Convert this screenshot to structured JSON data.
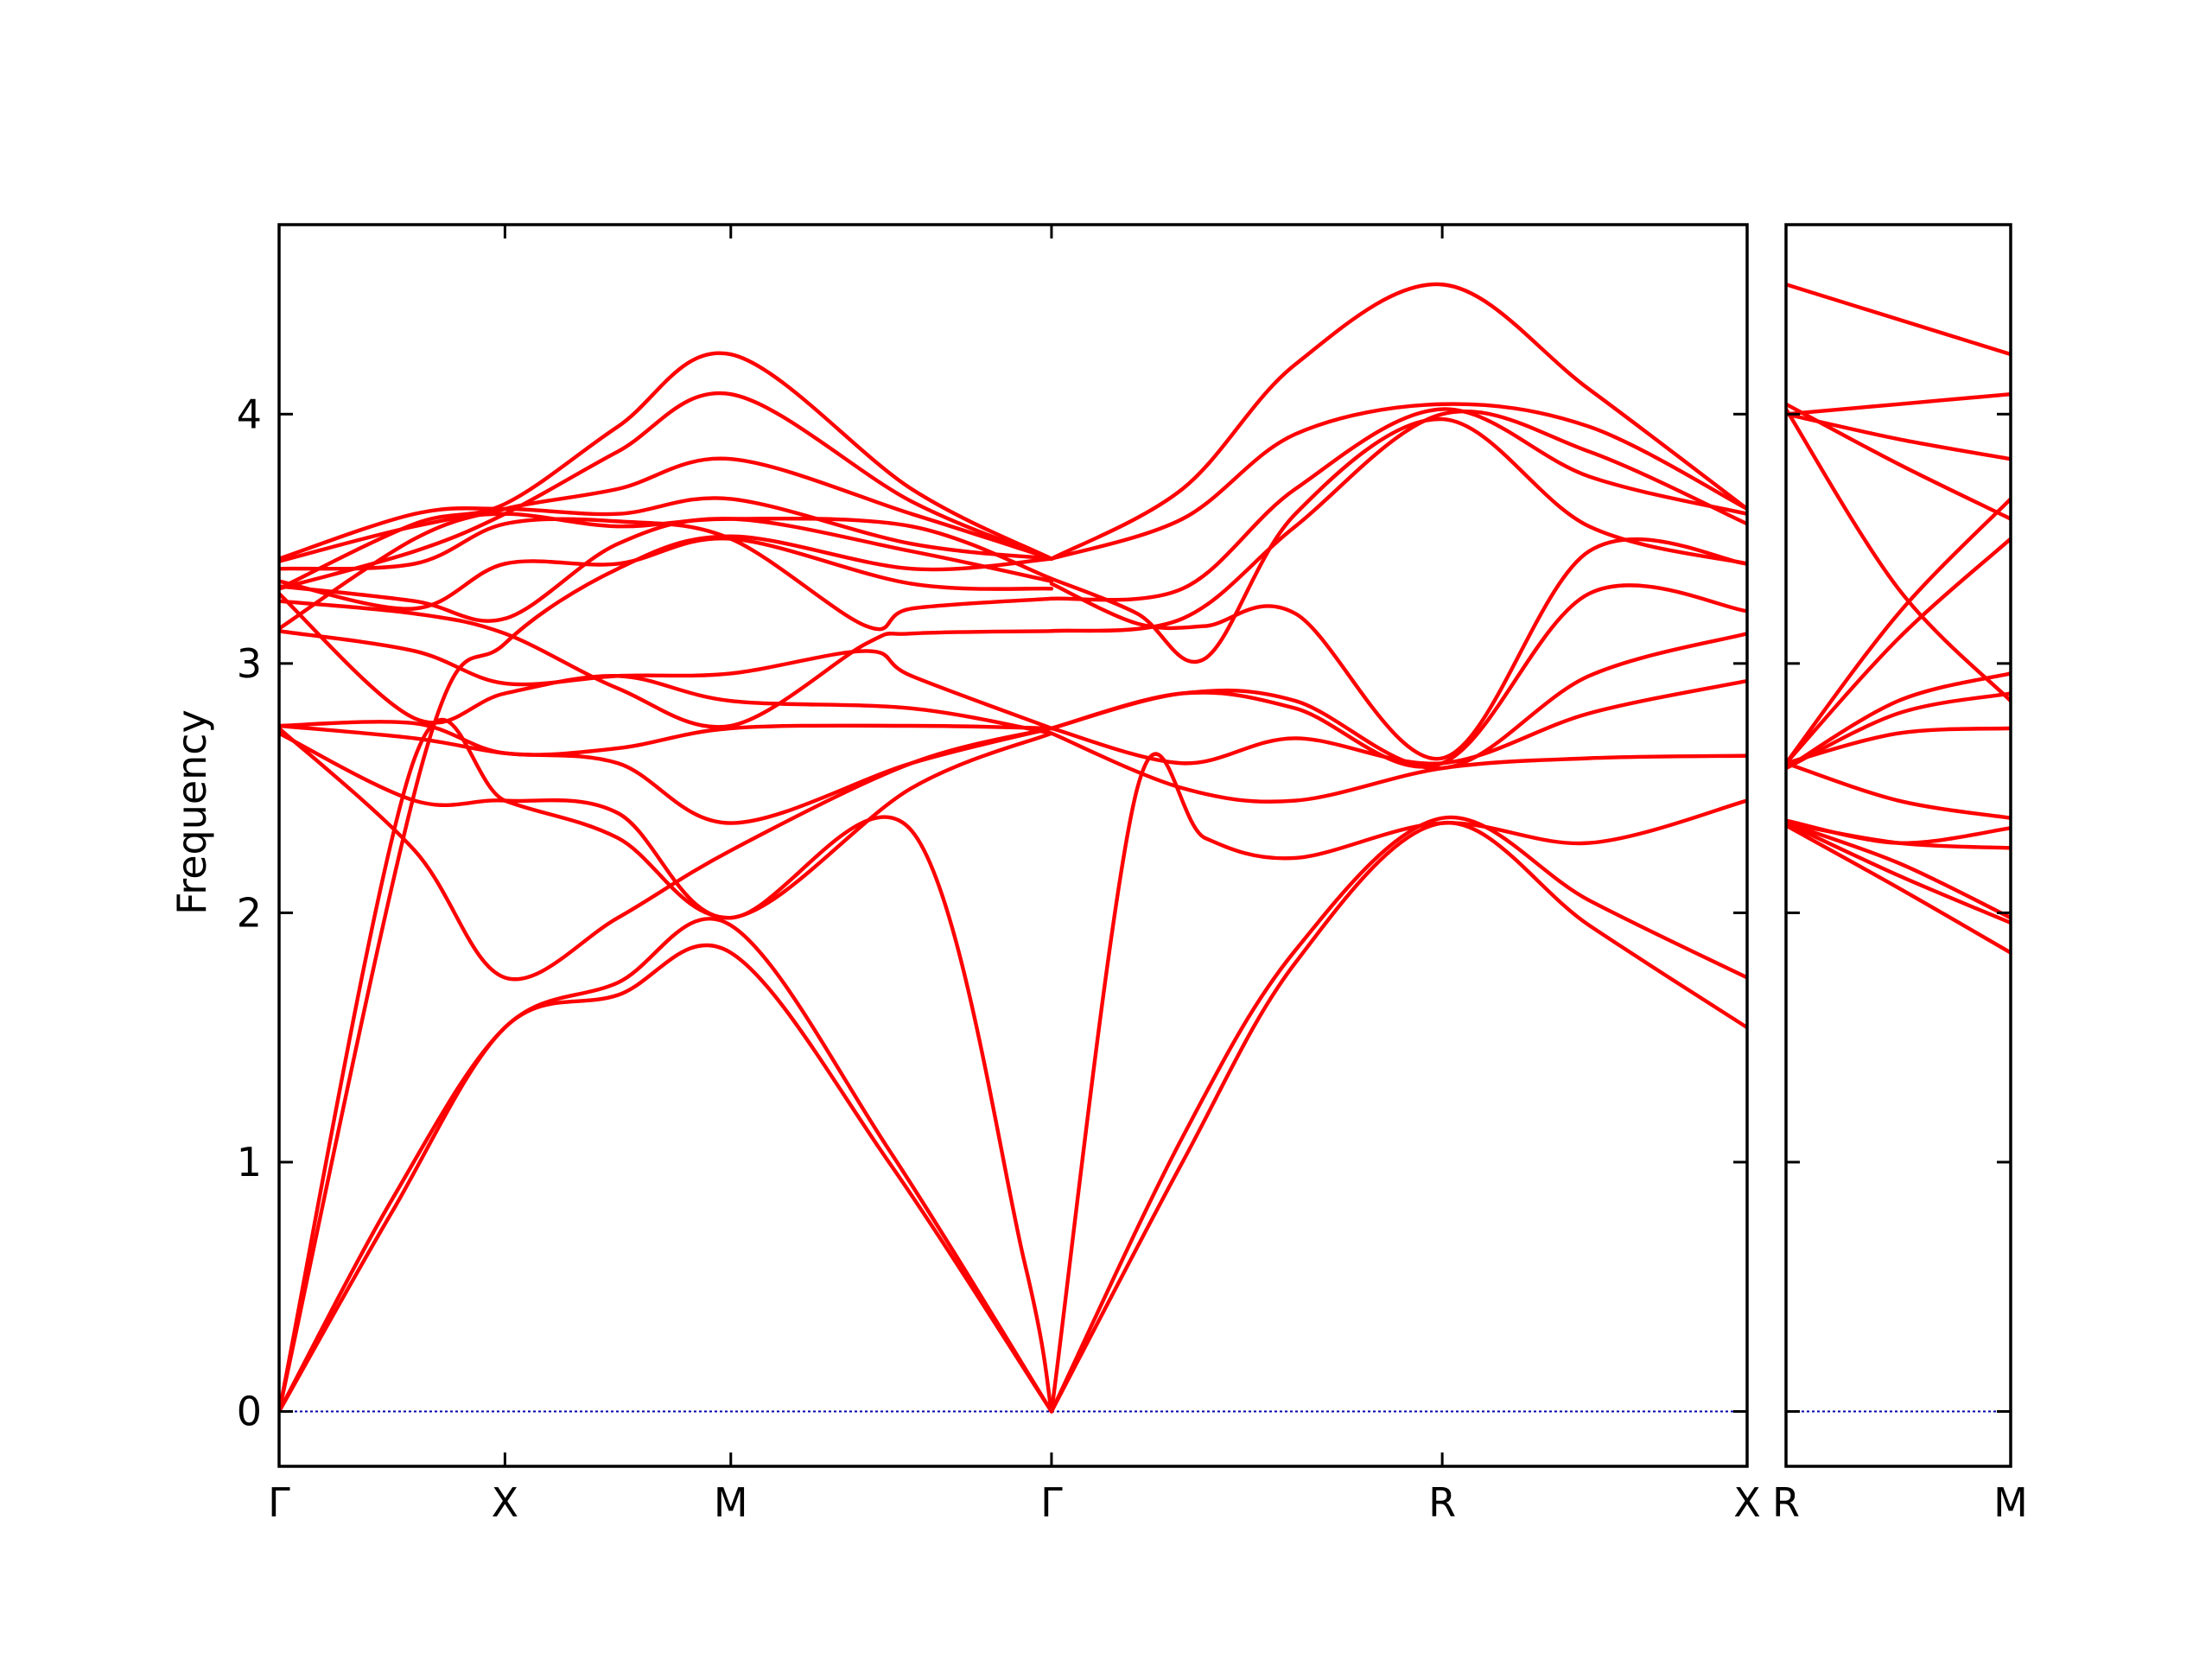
{
  "chart_data": {
    "type": "line",
    "title": "",
    "ylabel": "Frequency",
    "ylim": [
      -0.22,
      4.76
    ],
    "yticks": [
      0,
      1,
      2,
      3,
      4
    ],
    "grid": false,
    "legend": "none",
    "line_color": "#ff0000",
    "zero_line_color": "#0000aa",
    "panels": [
      {
        "xlabels": [
          "Γ",
          "X",
          "M",
          "Γ",
          "R",
          "X"
        ],
        "xlim": [
          0,
          6.5
        ],
        "xticks": [
          0,
          1,
          2,
          3.42,
          5.15,
          6.5
        ],
        "series": [
          {
            "x": [
              0,
              0.5,
              1,
              1.5,
              2,
              2.7,
              3.42
            ],
            "y": [
              0,
              0.8,
              1.54,
              1.67,
              1.84,
              1.0,
              0
            ]
          },
          {
            "x": [
              0,
              0.5,
              1,
              1.5,
              2,
              2.7,
              3.42
            ],
            "y": [
              0,
              0.85,
              1.54,
              1.72,
              1.95,
              1.05,
              0
            ]
          },
          {
            "x": [
              0,
              0.65,
              1,
              1.5,
              2,
              2.8,
              3.42
            ],
            "y": [
              0,
              2.65,
              3.08,
              3.38,
              3.51,
              3.38,
              3.42
            ]
          },
          {
            "x": [
              0,
              0.6,
              1,
              1.5,
              2,
              2.8,
              3.3,
              3.42
            ],
            "y": [
              0,
              2.62,
              2.45,
              2.3,
              1.98,
              2.33,
              0.6,
              0
            ]
          },
          {
            "x": [
              0,
              0.6,
              1,
              1.5,
              2,
              2.8,
              3.42
            ],
            "y": [
              2.74,
              2.25,
              1.74,
              1.98,
              2.25,
              2.6,
              2.74
            ]
          },
          {
            "x": [
              0,
              0.6,
              1,
              1.5,
              2,
              2.8,
              3.42
            ],
            "y": [
              2.72,
              2.45,
              2.45,
              2.4,
              1.98,
              2.5,
              2.72
            ]
          },
          {
            "x": [
              0,
              0.6,
              1,
              1.5,
              2,
              2.8,
              3.42
            ],
            "y": [
              2.75,
              2.7,
              2.64,
              2.6,
              2.36,
              2.6,
              2.74
            ]
          },
          {
            "x": [
              0,
              0.6,
              1,
              1.5,
              2,
              2.8,
              3.42
            ],
            "y": [
              2.75,
              2.76,
              2.64,
              2.66,
              2.74,
              2.75,
              2.74
            ]
          },
          {
            "x": [
              0,
              0.6,
              1,
              1.5,
              2,
              2.6,
              2.8,
              3.42
            ],
            "y": [
              3.13,
              3.05,
              2.92,
              2.95,
              2.96,
              3.05,
              2.95,
              2.74
            ]
          },
          {
            "x": [
              0,
              0.6,
              1,
              1.5,
              2,
              2.8,
              3.42
            ],
            "y": [
              3.28,
              2.78,
              2.88,
              2.95,
              2.85,
              2.82,
              2.72
            ]
          },
          {
            "x": [
              0,
              0.6,
              1,
              1.5,
              2,
              2.6,
              2.8,
              3.42
            ],
            "y": [
              3.25,
              3.2,
              3.12,
              2.9,
              2.75,
              3.08,
              3.12,
              3.13
            ]
          },
          {
            "x": [
              0,
              0.6,
              1,
              1.5,
              2,
              2.8,
              3.42
            ],
            "y": [
              3.31,
              3.25,
              3.18,
              3.48,
              3.58,
              3.45,
              3.33
            ]
          },
          {
            "x": [
              0,
              0.6,
              1,
              1.5,
              2,
              2.8,
              3.42
            ],
            "y": [
              3.33,
              3.22,
              3.4,
              3.4,
              3.5,
              3.32,
              3.3
            ]
          },
          {
            "x": [
              0,
              0.6,
              1,
              1.5,
              2,
              2.6,
              2.8,
              3.42
            ],
            "y": [
              3.38,
              3.4,
              3.56,
              3.57,
              3.5,
              3.15,
              3.22,
              3.26
            ]
          },
          {
            "x": [
              0,
              0.6,
              1,
              1.5,
              2,
              2.8,
              3.42
            ],
            "y": [
              3.41,
              3.55,
              3.6,
              3.55,
              3.58,
              3.55,
              3.34
            ]
          },
          {
            "x": [
              0,
              0.6,
              1,
              1.5,
              2,
              2.8,
              3.42
            ],
            "y": [
              3.42,
              3.6,
              3.62,
              3.6,
              3.66,
              3.48,
              3.42
            ]
          },
          {
            "x": [
              0,
              0.6,
              1,
              1.5,
              2,
              2.8,
              3.42
            ],
            "y": [
              3.14,
              3.5,
              3.62,
              3.7,
              3.82,
              3.6,
              3.42
            ]
          },
          {
            "x": [
              0,
              0.6,
              1,
              1.5,
              2,
              2.8,
              3.42
            ],
            "y": [
              3.3,
              3.45,
              3.6,
              3.85,
              4.08,
              3.65,
              3.42
            ]
          },
          {
            "x": [
              0,
              0.6,
              1,
              1.5,
              2,
              2.8,
              3.42
            ],
            "y": [
              3.3,
              3.56,
              3.64,
              3.95,
              4.24,
              3.7,
              3.42
            ]
          },
          {
            "x": [
              3.42,
              4.0,
              4.5,
              5.15,
              5.8,
              6.5
            ],
            "y": [
              0,
              1.0,
              1.8,
              2.36,
              1.95,
              1.54
            ]
          },
          {
            "x": [
              3.42,
              4.0,
              4.5,
              5.15,
              5.8,
              6.5
            ],
            "y": [
              0,
              1.1,
              1.85,
              2.38,
              2.05,
              1.74
            ]
          },
          {
            "x": [
              3.42,
              3.8,
              4.1,
              4.5,
              5.15,
              5.8,
              6.5
            ],
            "y": [
              0,
              2.5,
              2.3,
              2.22,
              2.36,
              2.28,
              2.45
            ]
          },
          {
            "x": [
              3.42,
              4.0,
              4.5,
              5.15,
              5.8,
              6.5
            ],
            "y": [
              2.72,
              2.5,
              2.45,
              2.58,
              2.62,
              2.63
            ]
          },
          {
            "x": [
              3.42,
              4.0,
              4.5,
              5.15,
              5.8,
              6.5
            ],
            "y": [
              2.74,
              2.6,
              2.7,
              2.6,
              2.8,
              2.93
            ]
          },
          {
            "x": [
              3.42,
              4.0,
              4.5,
              5.15,
              5.8,
              6.5
            ],
            "y": [
              2.74,
              2.88,
              2.85,
              2.58,
              2.95,
              3.12
            ]
          },
          {
            "x": [
              3.42,
              4.0,
              4.5,
              5.15,
              5.8,
              6.5
            ],
            "y": [
              2.74,
              2.88,
              2.82,
              2.6,
              3.28,
              3.21
            ]
          },
          {
            "x": [
              3.42,
              3.8,
              4.1,
              4.5,
              5.15,
              5.8,
              6.5
            ],
            "y": [
              3.34,
              3.2,
              3.02,
              3.6,
              3.98,
              3.55,
              3.4
            ]
          },
          {
            "x": [
              3.42,
              3.8,
              4.1,
              4.5,
              5.15,
              5.8,
              6.5
            ],
            "y": [
              3.32,
              3.16,
              3.15,
              3.2,
              2.62,
              3.45,
              3.4
            ]
          },
          {
            "x": [
              3.42,
              4.0,
              4.5,
              5.15,
              5.8,
              6.5
            ],
            "y": [
              3.13,
              3.18,
              3.55,
              4.0,
              3.85,
              3.56
            ]
          },
          {
            "x": [
              3.42,
              4.0,
              4.5,
              5.15,
              5.8,
              6.5
            ],
            "y": [
              3.26,
              3.3,
              3.7,
              4.02,
              3.75,
              3.6
            ]
          },
          {
            "x": [
              3.42,
              4.0,
              4.5,
              5.15,
              5.8,
              6.5
            ],
            "y": [
              3.42,
              3.58,
              3.92,
              4.04,
              3.95,
              3.62
            ]
          },
          {
            "x": [
              3.42,
              4.0,
              4.5,
              5.15,
              5.8,
              6.5
            ],
            "y": [
              3.42,
              3.7,
              4.2,
              4.52,
              4.1,
              3.62
            ]
          }
        ]
      },
      {
        "xlabels": [
          "R",
          "M"
        ],
        "xlim": [
          0,
          1
        ],
        "xticks": [
          0,
          1
        ],
        "series": [
          {
            "x": [
              0,
              0.5,
              1
            ],
            "y": [
              2.35,
              2.1,
              1.84
            ]
          },
          {
            "x": [
              0,
              0.5,
              1
            ],
            "y": [
              2.36,
              2.15,
              1.96
            ]
          },
          {
            "x": [
              0,
              0.5,
              1
            ],
            "y": [
              2.36,
              2.2,
              1.98
            ]
          },
          {
            "x": [
              0,
              0.5,
              1
            ],
            "y": [
              2.36,
              2.28,
              2.26
            ]
          },
          {
            "x": [
              0,
              0.5,
              1
            ],
            "y": [
              2.37,
              2.28,
              2.34
            ]
          },
          {
            "x": [
              0,
              0.5,
              1
            ],
            "y": [
              2.6,
              2.45,
              2.38
            ]
          },
          {
            "x": [
              0,
              0.5,
              1
            ],
            "y": [
              2.6,
              2.72,
              2.74
            ]
          },
          {
            "x": [
              0,
              0.5,
              1
            ],
            "y": [
              2.58,
              2.8,
              2.88
            ]
          },
          {
            "x": [
              0,
              0.5,
              1
            ],
            "y": [
              2.58,
              2.85,
              2.96
            ]
          },
          {
            "x": [
              0,
              0.5,
              1
            ],
            "y": [
              2.6,
              3.1,
              3.5
            ]
          },
          {
            "x": [
              0,
              0.5,
              1
            ],
            "y": [
              2.6,
              3.2,
              3.66
            ]
          },
          {
            "x": [
              0,
              0.5,
              1
            ],
            "y": [
              4.02,
              3.3,
              2.85
            ]
          },
          {
            "x": [
              0,
              0.5,
              1
            ],
            "y": [
              4.04,
              3.8,
              3.58
            ]
          },
          {
            "x": [
              0,
              0.5,
              1
            ],
            "y": [
              4.0,
              3.9,
              3.82
            ]
          },
          {
            "x": [
              0,
              0.5,
              1
            ],
            "y": [
              4.0,
              4.04,
              4.08
            ]
          },
          {
            "x": [
              0,
              0.5,
              1
            ],
            "y": [
              4.52,
              4.38,
              4.24
            ]
          }
        ]
      }
    ]
  }
}
